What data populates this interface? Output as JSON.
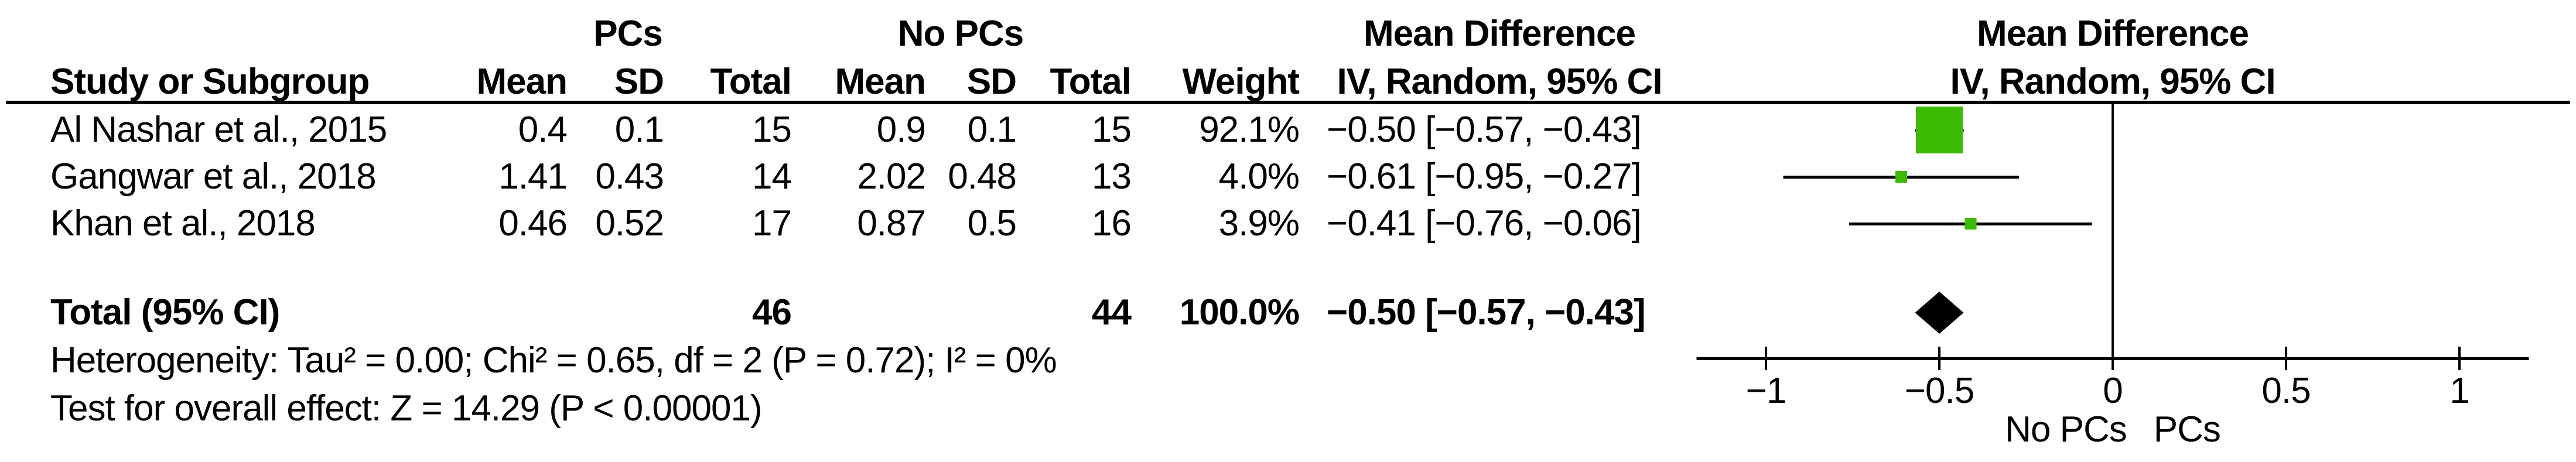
{
  "header": {
    "study": "Study or Subgroup",
    "group_pcs": "PCs",
    "group_nopcs": "No PCs",
    "mean": "Mean",
    "sd": "SD",
    "total": "Total",
    "weight": "Weight",
    "md_title": "Mean Difference",
    "md_subtitle": "IV, Random, 95% CI"
  },
  "rows": [
    {
      "study": "Al Nashar et al., 2015",
      "pcs_mean": "0.4",
      "pcs_sd": "0.1",
      "pcs_total": "15",
      "nopcs_mean": "0.9",
      "nopcs_sd": "0.1",
      "nopcs_total": "15",
      "weight": "92.1%",
      "md_ci": "−0.50 [−0.57, −0.43]"
    },
    {
      "study": "Gangwar et al., 2018",
      "pcs_mean": "1.41",
      "pcs_sd": "0.43",
      "pcs_total": "14",
      "nopcs_mean": "2.02",
      "nopcs_sd": "0.48",
      "nopcs_total": "13",
      "weight": "4.0%",
      "md_ci": "−0.61 [−0.95, −0.27]"
    },
    {
      "study": "Khan et al., 2018",
      "pcs_mean": "0.46",
      "pcs_sd": "0.52",
      "pcs_total": "17",
      "nopcs_mean": "0.87",
      "nopcs_sd": "0.5",
      "nopcs_total": "16",
      "weight": "3.9%",
      "md_ci": "−0.41 [−0.76, −0.06]"
    }
  ],
  "total_row": {
    "label": "Total (95% CI)",
    "pcs_total": "46",
    "nopcs_total": "44",
    "weight": "100.0%",
    "md_ci": "−0.50 [−0.57, −0.43]"
  },
  "footer": {
    "heterogeneity": "Heterogeneity: Tau² = 0.00; Chi² = 0.65, df = 2 (P = 0.72); I² = 0%",
    "overall_effect": "Test for overall effect: Z = 14.29 (P < 0.00001)"
  },
  "axis": {
    "tick_labels": [
      "−1",
      "−0.5",
      "0",
      "0.5",
      "1"
    ],
    "left_label": "No PCs",
    "right_label": "PCs"
  },
  "colors": {
    "square": "#3cbb05",
    "diamond": "#000000",
    "line": "#000000"
  },
  "chart_data": {
    "type": "forest",
    "effect_measure": "Mean Difference",
    "model": "IV, Random, 95% CI",
    "group_experimental": "PCs",
    "group_control": "No PCs",
    "studies": [
      {
        "name": "Al Nashar et al., 2015",
        "md": -0.5,
        "ci_low": -0.57,
        "ci_high": -0.43,
        "weight_pct": 92.1
      },
      {
        "name": "Gangwar et al., 2018",
        "md": -0.61,
        "ci_low": -0.95,
        "ci_high": -0.27,
        "weight_pct": 4.0
      },
      {
        "name": "Khan et al., 2018",
        "md": -0.41,
        "ci_low": -0.76,
        "ci_high": -0.06,
        "weight_pct": 3.9
      }
    ],
    "total": {
      "md": -0.5,
      "ci_low": -0.57,
      "ci_high": -0.43,
      "weight_pct": 100.0
    },
    "heterogeneity": {
      "tau2": 0.0,
      "chi2": 0.65,
      "df": 2,
      "p": 0.72,
      "i2_pct": 0
    },
    "overall_effect": {
      "z": 14.29,
      "p": "< 0.00001"
    },
    "x_ticks": [
      -1,
      -0.5,
      0,
      0.5,
      1
    ],
    "xlim": [
      -1.2,
      1.2
    ]
  }
}
